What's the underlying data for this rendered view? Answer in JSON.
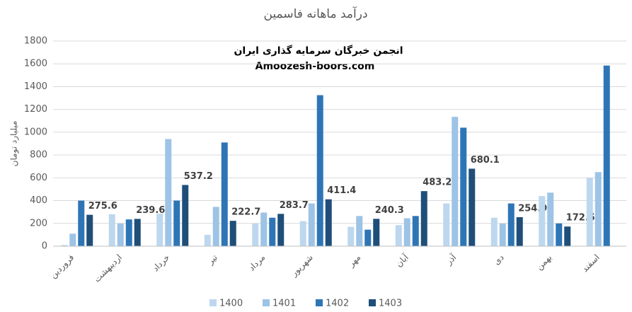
{
  "chart_data": {
    "type": "bar",
    "title": "درآمد ماهانه فاسمین",
    "y_label": "میلیارد تومان",
    "annotations": [
      "انجمن خبرگان سرمایه گذاری ایران",
      "Amoozesh-boors.com"
    ],
    "categories": [
      "فروردین",
      "اردیبهشت",
      "خرداد",
      "تیر",
      "مرداد",
      "شهریور",
      "مهر",
      "آبان",
      "آذر",
      "دی",
      "بهمن",
      "اسفند"
    ],
    "series": [
      {
        "name": "1400",
        "color": "#bdd7ee",
        "values": [
          10,
          280,
          285,
          100,
          200,
          220,
          170,
          185,
          375,
          250,
          440,
          600
        ]
      },
      {
        "name": "1401",
        "color": "#9dc3e6",
        "values": [
          110,
          200,
          940,
          345,
          295,
          375,
          265,
          245,
          1135,
          200,
          470,
          650
        ]
      },
      {
        "name": "1402",
        "color": "#2e75b6",
        "values": [
          400,
          235,
          400,
          910,
          250,
          1325,
          145,
          265,
          1040,
          375,
          200,
          1585
        ]
      },
      {
        "name": "1403",
        "color": "#1f4e79",
        "values": [
          275.6,
          239.6,
          537.2,
          222.7,
          283.7,
          411.4,
          240.3,
          483.2,
          680.1,
          254.9,
          172.5,
          null
        ],
        "data_labels": true
      }
    ],
    "ylim": [
      0,
      1800
    ],
    "yticks": [
      0,
      200,
      400,
      600,
      800,
      1000,
      1200,
      1400,
      1600,
      1800
    ],
    "grid": true,
    "legend": "bottom"
  }
}
